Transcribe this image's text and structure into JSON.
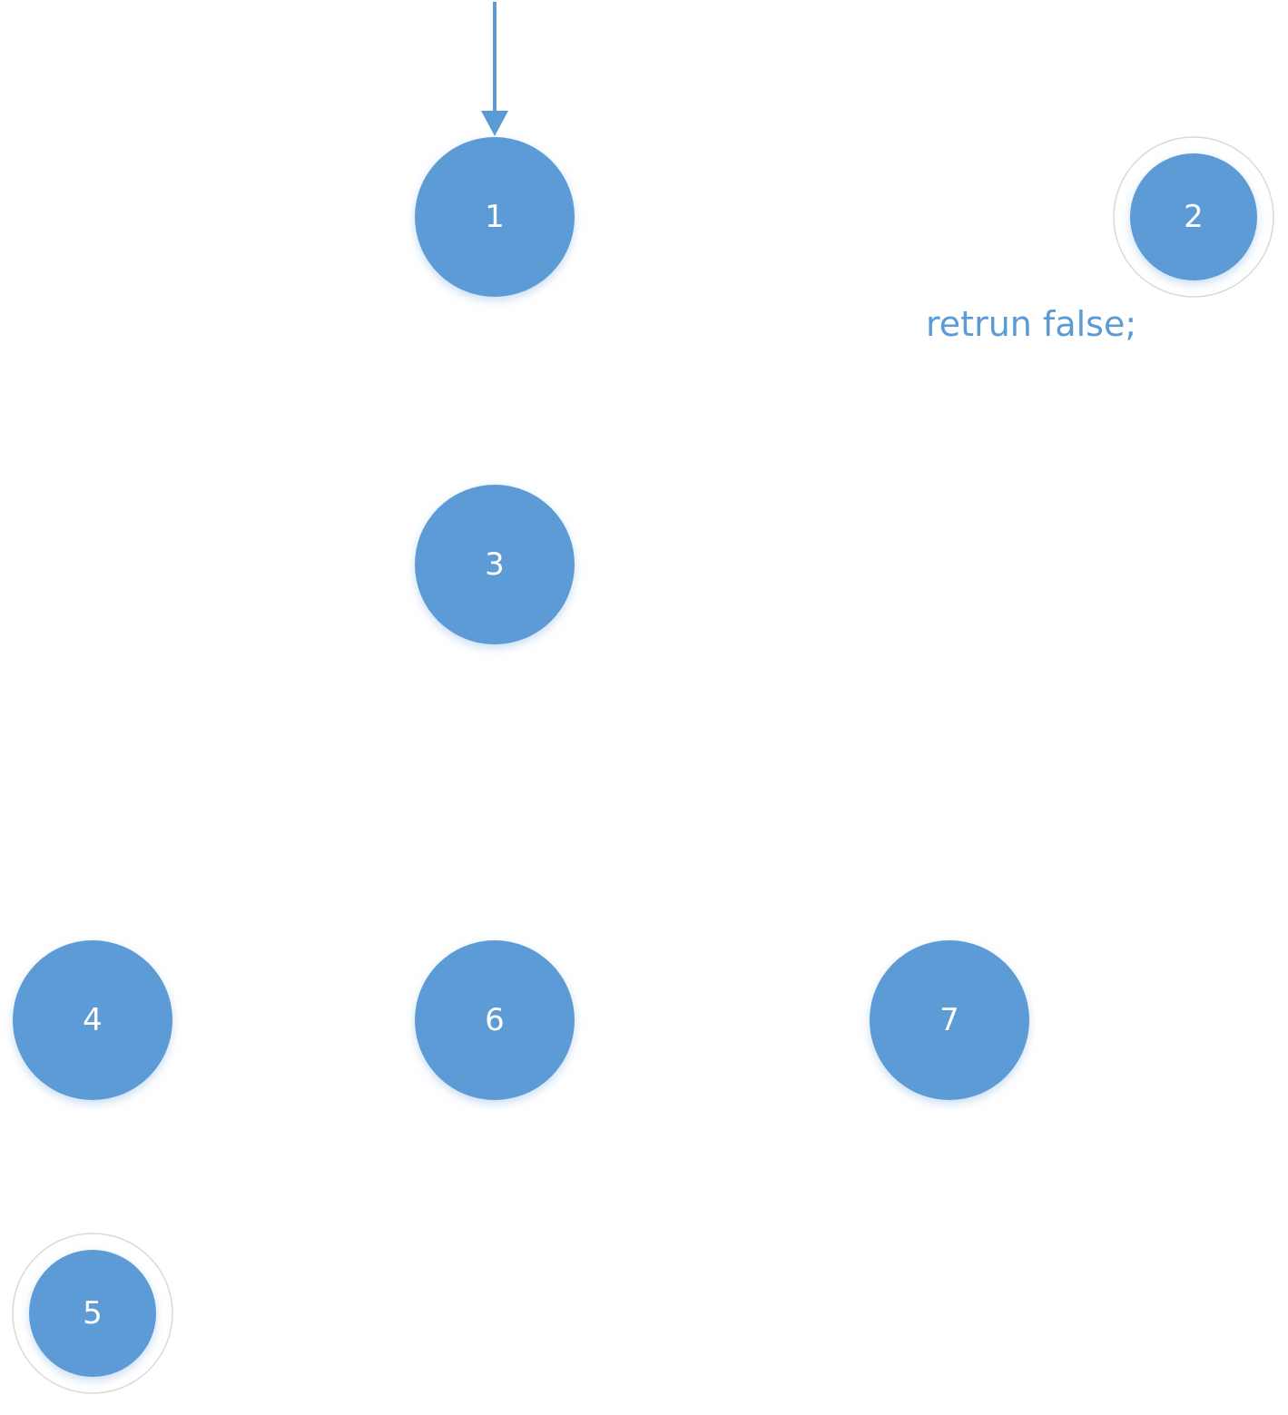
{
  "colors": {
    "node_fill": "#5b9bd5",
    "node_label": "#ffffff",
    "accepting_ring": "#d9d9d9",
    "arrow": "#5b9bd5",
    "annotation_text": "#5b9bd5",
    "background": "#ffffff"
  },
  "states": [
    {
      "id": "s1",
      "label": "1",
      "accepting": false,
      "initial": true
    },
    {
      "id": "s2",
      "label": "2",
      "accepting": true,
      "initial": false
    },
    {
      "id": "s3",
      "label": "3",
      "accepting": false,
      "initial": false
    },
    {
      "id": "s4",
      "label": "4",
      "accepting": false,
      "initial": false
    },
    {
      "id": "s5",
      "label": "5",
      "accepting": true,
      "initial": false
    },
    {
      "id": "s6",
      "label": "6",
      "accepting": false,
      "initial": false
    },
    {
      "id": "s7",
      "label": "7",
      "accepting": false,
      "initial": false
    }
  ],
  "annotations": {
    "state2_note": "retrun false;"
  }
}
